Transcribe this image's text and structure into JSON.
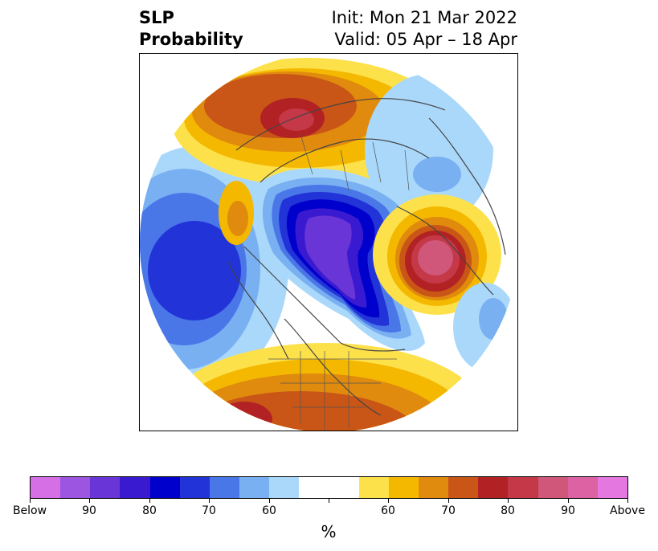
{
  "title": {
    "left_line1": "SLP",
    "left_line2": "Probability",
    "right_line1": "Init: Mon 21 Mar 2022",
    "right_line2": "Valid: 05 Apr – 18 Apr"
  },
  "colorbar": {
    "unit_label": "%",
    "tick_labels": [
      "Below",
      "90",
      "80",
      "70",
      "60",
      "",
      "60",
      "70",
      "80",
      "90",
      "Above"
    ],
    "below_colors": [
      "#d66fe6",
      "#9b55e0",
      "#6a35d6",
      "#3a1ad0",
      "#0000cc",
      "#2233d8",
      "#4a77e8",
      "#79b0f2",
      "#aad8fa"
    ],
    "neutral_color": "#ffffff",
    "above_colors": [
      "#fde14a",
      "#f4b800",
      "#e08a0e",
      "#c95616",
      "#b22224",
      "#c43848",
      "#d0577a",
      "#dc62a4",
      "#e478e0"
    ]
  },
  "map": {
    "projection": "north-polar-stereographic",
    "field": "SLP tercile probability"
  }
}
